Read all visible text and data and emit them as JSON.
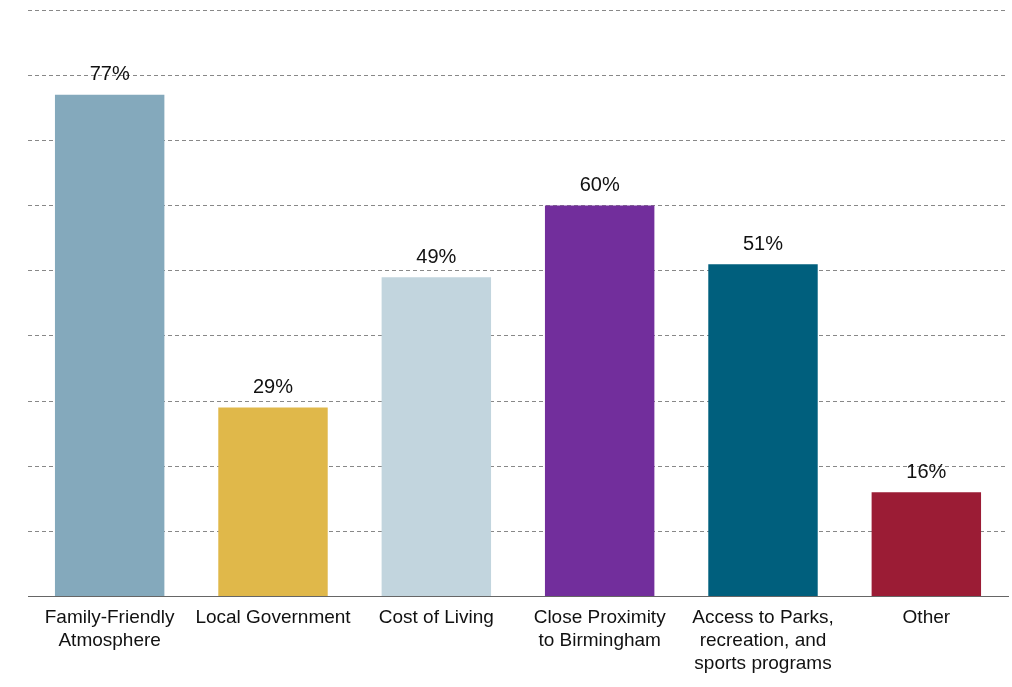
{
  "chart_data": {
    "type": "bar",
    "categories": [
      "Family-Friendly Atmosphere",
      "Local Government",
      "Cost of Living",
      "Close Proximity to Birmingham",
      "Access to Parks, recreation, and sports programs",
      "Other"
    ],
    "values": [
      77,
      29,
      49,
      60,
      51,
      16
    ],
    "colors": [
      "#84a9bc",
      "#e0b84a",
      "#c2d5de",
      "#722e9c",
      "#005f7d",
      "#9b1c35"
    ],
    "value_labels": [
      "77%",
      "29%",
      "49%",
      "60%",
      "51%",
      "16%"
    ],
    "ylim": [
      0,
      90
    ],
    "yticks": [
      {
        "value": 0,
        "label": null
      },
      {
        "value": 10,
        "label": null
      },
      {
        "value": 20,
        "label": null
      },
      {
        "value": 30,
        "label": null
      },
      {
        "value": 40,
        "label": null
      },
      {
        "value": 50,
        "label": null
      },
      {
        "value": 60,
        "label": null
      },
      {
        "value": 70,
        "label": null
      },
      {
        "value": 80,
        "label": null
      },
      {
        "value": 90,
        "label": null
      }
    ],
    "tick_labels": "x",
    "grid": "y",
    "legend": false
  }
}
